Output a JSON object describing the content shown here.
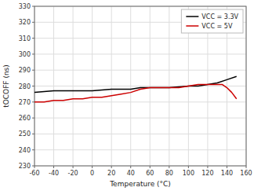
{
  "chart_data": {
    "type": "line",
    "xlabel": "Temperature (°C)",
    "ylabel": "tOCOFF (ns)",
    "xlim": [
      -60,
      160
    ],
    "ylim": [
      230,
      330
    ],
    "xticks": [
      -60,
      -40,
      -20,
      0,
      20,
      40,
      60,
      80,
      100,
      120,
      140,
      160
    ],
    "yticks": [
      230,
      240,
      250,
      260,
      270,
      280,
      290,
      300,
      310,
      320,
      330
    ],
    "grid": true,
    "legend": "upper right",
    "series": [
      {
        "name": "VCC = 3.3V",
        "color": "#000000",
        "x": [
          -60,
          -50,
          -40,
          -30,
          -20,
          -10,
          0,
          10,
          20,
          30,
          40,
          50,
          60,
          70,
          80,
          90,
          100,
          110,
          120,
          130,
          140,
          150
        ],
        "values": [
          276,
          276.5,
          277,
          277,
          277,
          277,
          277,
          277.5,
          278,
          278,
          278,
          279,
          279,
          279,
          279,
          279.5,
          280,
          280,
          281,
          282,
          284,
          286
        ]
      },
      {
        "name": "VCC = 5V",
        "color": "#cc0000",
        "x": [
          -60,
          -50,
          -40,
          -30,
          -20,
          -10,
          0,
          10,
          20,
          30,
          40,
          50,
          60,
          70,
          80,
          90,
          100,
          110,
          120,
          130,
          135,
          140,
          145,
          150
        ],
        "values": [
          270,
          270,
          271,
          271,
          272,
          272,
          273,
          273,
          274,
          275,
          276,
          278,
          279,
          279,
          279,
          279,
          280,
          281,
          281,
          281,
          281,
          279,
          276,
          272
        ]
      }
    ]
  }
}
